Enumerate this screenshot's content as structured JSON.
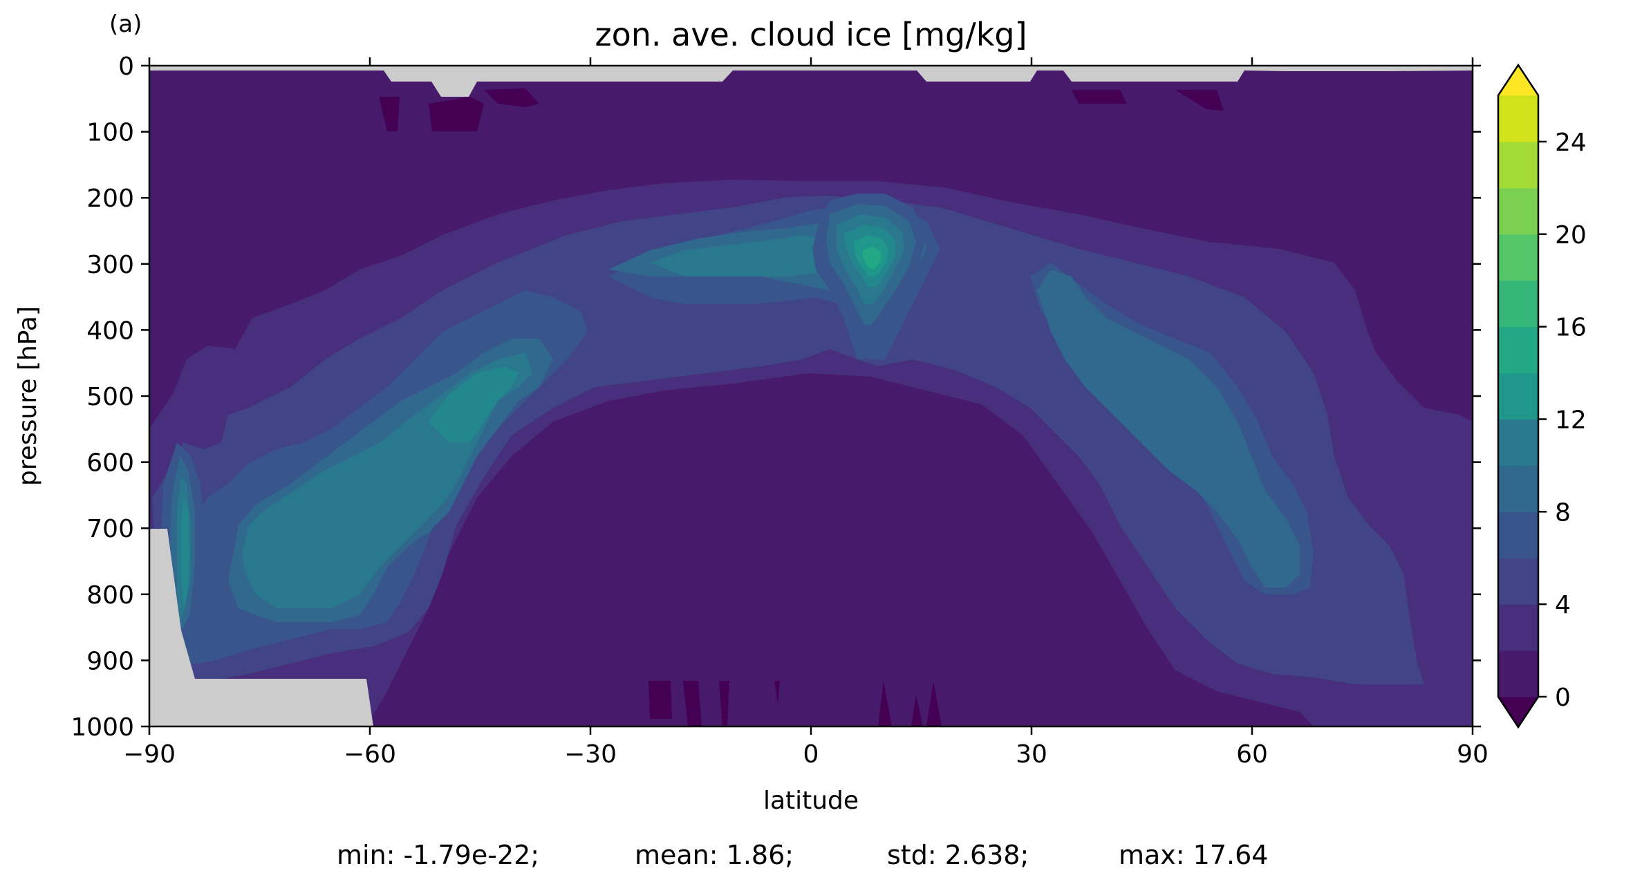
{
  "panel_label": "(a)",
  "chart_data": {
    "type": "contourf",
    "title": "zon. ave. cloud ice [mg/kg]",
    "xlabel": "latitude",
    "ylabel": "pressure [hPa]",
    "xlim": [
      -90,
      90
    ],
    "ylim": [
      1000,
      0
    ],
    "y_inverted": true,
    "xticks": [
      "−90",
      "−60",
      "−30",
      "0",
      "30",
      "60",
      "90"
    ],
    "yticks": [
      "0",
      "100",
      "200",
      "300",
      "400",
      "500",
      "600",
      "700",
      "800",
      "900",
      "1000"
    ],
    "colorbar": {
      "levels": [
        0,
        2,
        4,
        6,
        8,
        10,
        12,
        14,
        16,
        18,
        20,
        22,
        24,
        26
      ],
      "ticks": [
        "0",
        "4",
        "8",
        "12",
        "16",
        "20",
        "24"
      ],
      "extend": "both",
      "colors": [
        "#440154",
        "#481a6c",
        "#472f7d",
        "#414487",
        "#39568c",
        "#31688e",
        "#2a788e",
        "#23888e",
        "#1f988b",
        "#22a884",
        "#35b779",
        "#54c568",
        "#7ad151",
        "#a5db36",
        "#d2e21b",
        "#fde725"
      ]
    },
    "missing_color": "#cccccc",
    "stats": {
      "min": "min: -1.79e-22;",
      "mean": "mean: 1.86;",
      "std": "std: 2.638;",
      "max": "max: 17.64"
    }
  }
}
